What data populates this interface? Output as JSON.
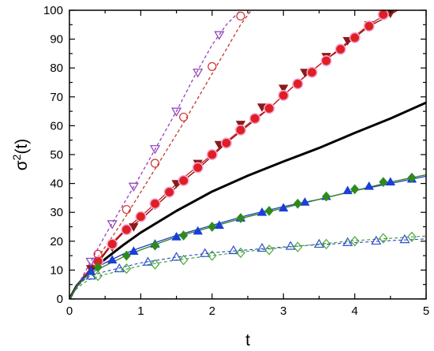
{
  "chart_data": {
    "type": "line",
    "xlabel": "t",
    "ylabel": "σ²(t)",
    "ylabel_base": "σ",
    "ylabel_sup": "2",
    "ylabel_suffix": "(t)",
    "xlim": [
      0,
      5
    ],
    "ylim": [
      0,
      100
    ],
    "xticks": [
      0,
      1,
      2,
      3,
      4,
      5
    ],
    "yticks": [
      0,
      10,
      20,
      30,
      40,
      50,
      60,
      70,
      80,
      90,
      100
    ],
    "grid": false,
    "legend": "none",
    "series": [
      {
        "color": "#000000",
        "dashed": false,
        "width": 3,
        "marker": "none",
        "x": [
          0,
          0.1,
          0.2,
          0.3,
          0.5,
          0.75,
          1,
          1.5,
          2,
          2.5,
          3,
          3.5,
          4,
          4.5,
          5
        ],
        "y": [
          0,
          4.5,
          7.3,
          9.7,
          13.8,
          18.6,
          23,
          30.5,
          37.2,
          42.7,
          47.6,
          52.3,
          57.5,
          62.5,
          68
        ]
      },
      {
        "color": "#8b0000",
        "dashed": false,
        "width": 1.3,
        "marker": "triangle-down-filled",
        "marker_color": "#8b1a1a",
        "x": [
          0,
          0.1,
          0.2,
          0.4,
          0.6,
          0.8,
          1,
          1.2,
          1.4,
          1.6,
          1.8,
          2,
          2.2,
          2.4,
          2.6,
          2.8,
          3,
          3.2,
          3.4,
          3.6,
          3.8,
          4,
          4.2,
          4.4,
          4.6
        ],
        "y": [
          0,
          4,
          7.5,
          12.5,
          19,
          24,
          27.5,
          32,
          36.5,
          41,
          45,
          49.5,
          54,
          58,
          62,
          66,
          70.5,
          75,
          79,
          83,
          86.5,
          90.5,
          94.5,
          97,
          100
        ],
        "marker_x": [
          0.3,
          0.6,
          0.9,
          1.2,
          1.5,
          1.8,
          2.1,
          2.4,
          2.7,
          3.0,
          3.3,
          3.6,
          3.9,
          4.2,
          4.5
        ],
        "marker_y": [
          10.5,
          18,
          25,
          32.5,
          40,
          47,
          53.5,
          60.5,
          66.5,
          73,
          78.5,
          84,
          89.5,
          95,
          99
        ]
      },
      {
        "color": "#cc1a1a",
        "dashed": false,
        "width": 1.3,
        "marker": "circle-filled",
        "marker_color": "#e02020",
        "marker_halo": "#f2a6dc",
        "x": [
          0,
          0.1,
          0.2,
          0.4,
          0.6,
          0.8,
          1,
          1.2,
          1.4,
          1.6,
          1.8,
          2,
          2.2,
          2.4,
          2.6,
          2.8,
          3,
          3.2,
          3.4,
          3.6,
          3.8,
          4,
          4.2,
          4.4,
          4.6
        ],
        "y": [
          0,
          4,
          8,
          13,
          19.5,
          24.5,
          28.5,
          33,
          37.5,
          42,
          46,
          50,
          54.5,
          58.5,
          62.5,
          66,
          70.5,
          75,
          79,
          83,
          87,
          91,
          95,
          98,
          101
        ],
        "marker_x": [
          0.4,
          0.6,
          0.8,
          1.0,
          1.2,
          1.4,
          1.6,
          1.8,
          2.0,
          2.2,
          2.4,
          2.6,
          2.8,
          3.0,
          3.2,
          3.4,
          3.6,
          3.8,
          4.0,
          4.2,
          4.4
        ],
        "marker_y": [
          13,
          19,
          24,
          28.5,
          33,
          37,
          41,
          45.5,
          50,
          54,
          58.5,
          62.5,
          66,
          70.5,
          74.5,
          78.5,
          82.5,
          86.5,
          90.5,
          94.5,
          98.5
        ]
      },
      {
        "color": "#9b3fc0",
        "dashed": true,
        "width": 1.3,
        "marker": "triangle-down-open",
        "marker_color": "#8a3fb5",
        "x": [
          0,
          0.1,
          0.2,
          0.3,
          0.5,
          0.75,
          1,
          1.25,
          1.5,
          1.75,
          2,
          2.2,
          2.4
        ],
        "y": [
          0,
          4,
          8.5,
          13,
          22,
          32.5,
          43,
          54,
          65,
          77,
          88,
          95,
          100
        ],
        "marker_x": [
          0.3,
          0.6,
          0.9,
          1.2,
          1.5,
          1.8,
          2.1
        ],
        "marker_y": [
          13,
          26,
          39,
          52,
          65,
          78.5,
          91.5
        ]
      },
      {
        "color": "#c0392b",
        "dashed": true,
        "width": 1.3,
        "marker": "circle-open",
        "marker_color": "#d0342c",
        "x": [
          0,
          0.1,
          0.2,
          0.4,
          0.6,
          0.8,
          1,
          1.2,
          1.4,
          1.6,
          1.8,
          2,
          2.2,
          2.4,
          2.55
        ],
        "y": [
          0,
          4,
          7.5,
          14.5,
          21.5,
          29,
          37,
          45,
          53,
          61,
          69.5,
          78,
          86.5,
          95,
          100
        ],
        "marker_x": [
          0.4,
          0.8,
          1.2,
          1.6,
          2.0,
          2.4
        ],
        "marker_y": [
          15.5,
          31,
          47,
          63,
          80.5,
          98
        ]
      },
      {
        "color": "#1f3fbf",
        "dashed": false,
        "width": 1.3,
        "marker": "triangle-up-filled",
        "marker_color": "#1a3fd6",
        "x": [
          0,
          0.1,
          0.2,
          0.3,
          0.5,
          0.75,
          1,
          1.5,
          2,
          2.5,
          3,
          3.5,
          4,
          4.5,
          5
        ],
        "y": [
          0,
          4.5,
          7.5,
          9.5,
          12.5,
          15.5,
          17.8,
          22,
          25.5,
          29,
          32,
          34.5,
          37.5,
          40,
          42.5
        ],
        "marker_x": [
          0.3,
          0.6,
          0.9,
          1.2,
          1.5,
          1.8,
          2.1,
          2.4,
          2.7,
          3.0,
          3.3,
          3.6,
          3.9,
          4.2,
          4.5,
          4.8
        ],
        "marker_y": [
          9.5,
          13.5,
          16.5,
          19,
          21.5,
          23.5,
          25.5,
          28,
          30,
          31.5,
          33.5,
          35.5,
          37.5,
          39,
          40.5,
          41.5
        ]
      },
      {
        "color": "#2e7d1f",
        "dashed": false,
        "width": 1.3,
        "marker": "diamond-filled",
        "marker_color": "#2f8a1e",
        "x": [
          0,
          0.1,
          0.2,
          0.3,
          0.5,
          0.75,
          1,
          1.5,
          2,
          2.5,
          3,
          3.5,
          4,
          4.5,
          5
        ],
        "y": [
          0,
          4.5,
          7,
          9,
          11.5,
          14.5,
          17,
          21.5,
          25,
          28.5,
          31.5,
          34.5,
          37.5,
          40.5,
          43
        ],
        "marker_x": [
          0.4,
          0.8,
          1.2,
          1.6,
          2.0,
          2.4,
          2.8,
          3.2,
          3.6,
          4.0,
          4.4,
          4.8
        ],
        "marker_y": [
          11,
          15,
          18.5,
          22,
          25,
          28,
          30.5,
          33,
          35.5,
          38,
          40.5,
          42
        ]
      },
      {
        "color": "#2845c4",
        "dashed": true,
        "width": 1.1,
        "marker": "triangle-up-open",
        "marker_color": "#2d4fd0",
        "x": [
          0,
          0.1,
          0.2,
          0.3,
          0.5,
          0.75,
          1,
          1.5,
          2,
          2.5,
          3,
          3.5,
          4,
          4.5,
          5
        ],
        "y": [
          0,
          4,
          6.5,
          8,
          9.5,
          11,
          12.5,
          14.5,
          16,
          17,
          18,
          18.8,
          19.5,
          20.2,
          20.8
        ],
        "marker_x": [
          0.3,
          0.7,
          1.1,
          1.5,
          1.9,
          2.3,
          2.7,
          3.1,
          3.5,
          3.9,
          4.3,
          4.7
        ],
        "marker_y": [
          8,
          10.5,
          12.8,
          14.5,
          15.8,
          16.8,
          17.6,
          18.3,
          19,
          19.6,
          20.1,
          20.6
        ]
      },
      {
        "color": "#3a9a2a",
        "dashed": true,
        "width": 1.1,
        "marker": "diamond-open",
        "marker_color": "#4aa83a",
        "x": [
          0,
          0.1,
          0.2,
          0.3,
          0.5,
          0.75,
          1,
          1.5,
          2,
          2.5,
          3,
          3.5,
          4,
          4.5,
          5
        ],
        "y": [
          0,
          3.5,
          5.5,
          7,
          8.5,
          10,
          11.5,
          13.5,
          15,
          16.5,
          17.8,
          19,
          20.2,
          21,
          21.8
        ],
        "marker_x": [
          0.4,
          0.8,
          1.2,
          1.6,
          2.0,
          2.4,
          2.8,
          3.2,
          3.6,
          4.0,
          4.4,
          4.8
        ],
        "marker_y": [
          8,
          10.5,
          12,
          13.5,
          15,
          16,
          17,
          18,
          19,
          20,
          21,
          21.5
        ]
      }
    ]
  }
}
